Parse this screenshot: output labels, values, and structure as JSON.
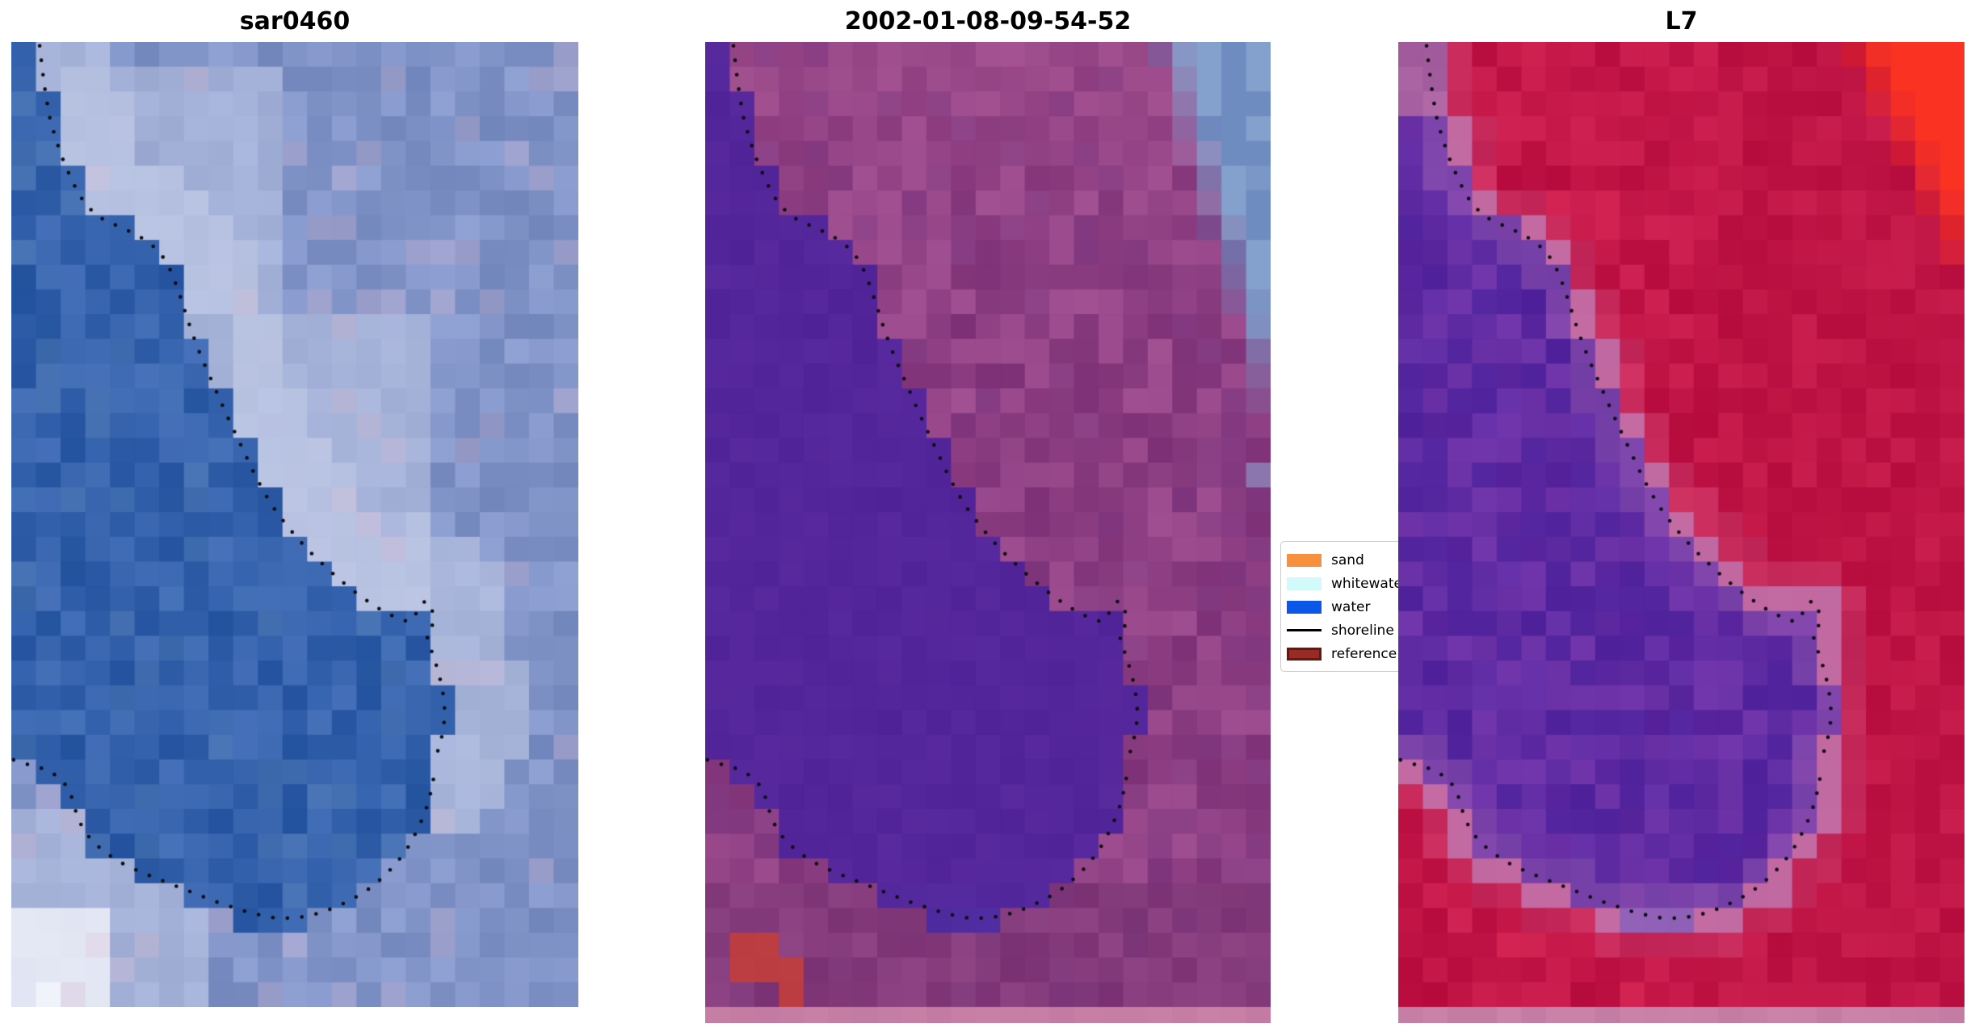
{
  "figure": {
    "background": "#FFFFFF",
    "panels": [
      {
        "id": "sar0460",
        "title": "sar0460",
        "colors": {
          "water": "#3562AC",
          "water_alt": "#4E79B4",
          "land": "#8194C8",
          "light": "#C9D0E9",
          "white": "#F7F8FD",
          "pink_tint": "#D8BBD4"
        }
      },
      {
        "id": "classified",
        "title": "2002-01-08-09-54-52",
        "colors": {
          "water": "#54269B",
          "water_bottom": "#4A33A8",
          "land": "#8F4084",
          "land_pink": "#A85490",
          "land_dark": "#7C3780",
          "land_bottom": "#73336F",
          "blue_corner": "#6E8CC0",
          "blue_corner_light": "#84A0CC",
          "red_spot": "#C23E3C",
          "strip": "#C77FA6"
        }
      },
      {
        "id": "L7",
        "title": "L7",
        "colors": {
          "water": "#5E2AA2",
          "water_dark": "#49209A",
          "water_light": "#7B3AAD",
          "water_edge": "#9E5FB2",
          "water_tip": "#9C72BE",
          "land": "#C41748",
          "land_dark": "#B30F3E",
          "shore_band": "#C278B2",
          "shore_band_outer": "#CE4E80",
          "corner_red": "#F93222",
          "lavender_top": "#AE66A6",
          "strip": "#C77FA6"
        }
      }
    ],
    "legend": {
      "items": [
        {
          "label": "sand",
          "type": "patch",
          "color": "#F8913D"
        },
        {
          "label": "whitewater",
          "type": "patch",
          "color": "#D2FAFA"
        },
        {
          "label": "water",
          "type": "patch",
          "color": "#0B57EA"
        },
        {
          "label": "shoreline",
          "type": "line",
          "color": "#000000"
        },
        {
          "label": "reference",
          "type": "patch",
          "color": "#9A2B24",
          "border": "#5E1B15"
        }
      ]
    },
    "shoreline": {
      "dot_color": "#0E0E12",
      "upper": [
        [
          0.05,
          0.004
        ],
        [
          0.055,
          0.03
        ],
        [
          0.061,
          0.056
        ],
        [
          0.069,
          0.082
        ],
        [
          0.081,
          0.105
        ],
        [
          0.093,
          0.125
        ],
        [
          0.106,
          0.142
        ],
        [
          0.119,
          0.158
        ],
        [
          0.134,
          0.17
        ],
        [
          0.151,
          0.18
        ],
        [
          0.169,
          0.186
        ],
        [
          0.189,
          0.191
        ],
        [
          0.211,
          0.197
        ],
        [
          0.233,
          0.204
        ],
        [
          0.253,
          0.213
        ],
        [
          0.269,
          0.224
        ],
        [
          0.281,
          0.237
        ],
        [
          0.291,
          0.252
        ],
        [
          0.301,
          0.269
        ],
        [
          0.311,
          0.288
        ],
        [
          0.323,
          0.308
        ],
        [
          0.336,
          0.328
        ],
        [
          0.351,
          0.348
        ],
        [
          0.366,
          0.368
        ],
        [
          0.381,
          0.388
        ],
        [
          0.397,
          0.408
        ],
        [
          0.413,
          0.428
        ],
        [
          0.429,
          0.448
        ],
        [
          0.445,
          0.466
        ],
        [
          0.463,
          0.483
        ],
        [
          0.483,
          0.499
        ],
        [
          0.504,
          0.514
        ],
        [
          0.526,
          0.528
        ],
        [
          0.549,
          0.541
        ],
        [
          0.571,
          0.553
        ],
        [
          0.593,
          0.564
        ],
        [
          0.615,
          0.574
        ],
        [
          0.637,
          0.583
        ],
        [
          0.659,
          0.591
        ],
        [
          0.681,
          0.597
        ],
        [
          0.701,
          0.601
        ],
        [
          0.713,
          0.593
        ],
        [
          0.721,
          0.584
        ],
        [
          0.731,
          0.579
        ],
        [
          0.741,
          0.586
        ],
        [
          0.745,
          0.597
        ],
        [
          0.741,
          0.608
        ],
        [
          0.732,
          0.614
        ],
        [
          0.738,
          0.626
        ],
        [
          0.747,
          0.641
        ],
        [
          0.755,
          0.657
        ],
        [
          0.761,
          0.674
        ],
        [
          0.764,
          0.691
        ],
        [
          0.763,
          0.708
        ],
        [
          0.758,
          0.723
        ],
        [
          0.751,
          0.737
        ]
      ],
      "lower": [
        [
          0.004,
          0.744
        ],
        [
          0.024,
          0.748
        ],
        [
          0.046,
          0.751
        ],
        [
          0.068,
          0.756
        ],
        [
          0.086,
          0.763
        ],
        [
          0.1,
          0.773
        ],
        [
          0.108,
          0.785
        ],
        [
          0.114,
          0.798
        ],
        [
          0.122,
          0.81
        ],
        [
          0.133,
          0.821
        ],
        [
          0.148,
          0.831
        ],
        [
          0.166,
          0.84
        ],
        [
          0.186,
          0.848
        ],
        [
          0.208,
          0.855
        ],
        [
          0.232,
          0.861
        ],
        [
          0.257,
          0.867
        ],
        [
          0.283,
          0.873
        ],
        [
          0.309,
          0.879
        ],
        [
          0.335,
          0.885
        ],
        [
          0.361,
          0.891
        ],
        [
          0.387,
          0.896
        ],
        [
          0.413,
          0.901
        ],
        [
          0.44,
          0.905
        ],
        [
          0.467,
          0.908
        ],
        [
          0.494,
          0.908
        ],
        [
          0.521,
          0.906
        ],
        [
          0.548,
          0.902
        ],
        [
          0.574,
          0.896
        ],
        [
          0.599,
          0.889
        ],
        [
          0.623,
          0.881
        ],
        [
          0.645,
          0.871
        ],
        [
          0.665,
          0.86
        ],
        [
          0.683,
          0.848
        ],
        [
          0.699,
          0.835
        ],
        [
          0.713,
          0.82
        ],
        [
          0.725,
          0.805
        ],
        [
          0.735,
          0.789
        ],
        [
          0.742,
          0.772
        ],
        [
          0.747,
          0.755
        ]
      ]
    },
    "water_polygon": [
      [
        0,
        0
      ],
      [
        0.056,
        0
      ],
      [
        0.062,
        0.028
      ],
      [
        0.07,
        0.058
      ],
      [
        0.08,
        0.088
      ],
      [
        0.094,
        0.113
      ],
      [
        0.108,
        0.133
      ],
      [
        0.124,
        0.15
      ],
      [
        0.14,
        0.163
      ],
      [
        0.158,
        0.174
      ],
      [
        0.176,
        0.181
      ],
      [
        0.196,
        0.186
      ],
      [
        0.218,
        0.193
      ],
      [
        0.24,
        0.201
      ],
      [
        0.26,
        0.211
      ],
      [
        0.276,
        0.223
      ],
      [
        0.289,
        0.238
      ],
      [
        0.3,
        0.255
      ],
      [
        0.31,
        0.273
      ],
      [
        0.32,
        0.293
      ],
      [
        0.332,
        0.313
      ],
      [
        0.346,
        0.333
      ],
      [
        0.36,
        0.353
      ],
      [
        0.375,
        0.373
      ],
      [
        0.391,
        0.393
      ],
      [
        0.407,
        0.413
      ],
      [
        0.423,
        0.433
      ],
      [
        0.439,
        0.453
      ],
      [
        0.456,
        0.471
      ],
      [
        0.474,
        0.488
      ],
      [
        0.494,
        0.504
      ],
      [
        0.515,
        0.519
      ],
      [
        0.537,
        0.533
      ],
      [
        0.56,
        0.546
      ],
      [
        0.582,
        0.558
      ],
      [
        0.604,
        0.569
      ],
      [
        0.626,
        0.579
      ],
      [
        0.648,
        0.588
      ],
      [
        0.67,
        0.596
      ],
      [
        0.692,
        0.602
      ],
      [
        0.71,
        0.605
      ],
      [
        0.722,
        0.598
      ],
      [
        0.732,
        0.59
      ],
      [
        0.744,
        0.588
      ],
      [
        0.754,
        0.596
      ],
      [
        0.758,
        0.608
      ],
      [
        0.752,
        0.62
      ],
      [
        0.745,
        0.628
      ],
      [
        0.751,
        0.642
      ],
      [
        0.759,
        0.658
      ],
      [
        0.765,
        0.675
      ],
      [
        0.768,
        0.692
      ],
      [
        0.767,
        0.71
      ],
      [
        0.761,
        0.726
      ],
      [
        0.754,
        0.74
      ],
      [
        0.75,
        0.755
      ],
      [
        0.744,
        0.772
      ],
      [
        0.737,
        0.788
      ],
      [
        0.727,
        0.804
      ],
      [
        0.715,
        0.819
      ],
      [
        0.701,
        0.833
      ],
      [
        0.685,
        0.846
      ],
      [
        0.667,
        0.858
      ],
      [
        0.647,
        0.869
      ],
      [
        0.625,
        0.879
      ],
      [
        0.601,
        0.888
      ],
      [
        0.576,
        0.896
      ],
      [
        0.55,
        0.906
      ],
      [
        0.52,
        0.918
      ],
      [
        0.487,
        0.926
      ],
      [
        0.452,
        0.929
      ],
      [
        0.418,
        0.926
      ],
      [
        0.386,
        0.917
      ],
      [
        0.357,
        0.905
      ],
      [
        0.335,
        0.892
      ],
      [
        0.31,
        0.881
      ],
      [
        0.284,
        0.875
      ],
      [
        0.258,
        0.869
      ],
      [
        0.233,
        0.863
      ],
      [
        0.209,
        0.857
      ],
      [
        0.187,
        0.85
      ],
      [
        0.167,
        0.842
      ],
      [
        0.149,
        0.833
      ],
      [
        0.135,
        0.823
      ],
      [
        0.124,
        0.812
      ],
      [
        0.116,
        0.8
      ],
      [
        0.11,
        0.787
      ],
      [
        0.102,
        0.775
      ],
      [
        0.088,
        0.765
      ],
      [
        0.07,
        0.758
      ],
      [
        0.048,
        0.754
      ],
      [
        0.026,
        0.751
      ],
      [
        0.004,
        0.747
      ],
      [
        0,
        0.747
      ]
    ]
  },
  "chart_data": {
    "type": "heatmap",
    "title": "",
    "panels": [
      {
        "title": "sar0460",
        "description": "Pixelated blue/gray SAR satellite tile with dotted black shoreline overlay; bright white patch bottom-left, light band along upper shoreline"
      },
      {
        "title": "2002-01-08-09-54-52",
        "description": "Classified optical tile: solid purple water mask on left, mottled magenta land, blue-gray sea in top-right corner, small red patches bottom-left, uniform pink strip along bottom, dotted black shoreline overlay"
      },
      {
        "title": "L7",
        "description": "Landsat-7 false-colour tile: crimson land, mottled purple water, lavender band along shoreline, bright red top-right corner, uniform pink strip along bottom, dotted black shoreline overlay"
      }
    ],
    "legend_entries": [
      "sand",
      "whitewater",
      "water",
      "shoreline",
      "reference"
    ],
    "legend_position": "center-right between second and third panel, partially overlapped by third panel"
  }
}
